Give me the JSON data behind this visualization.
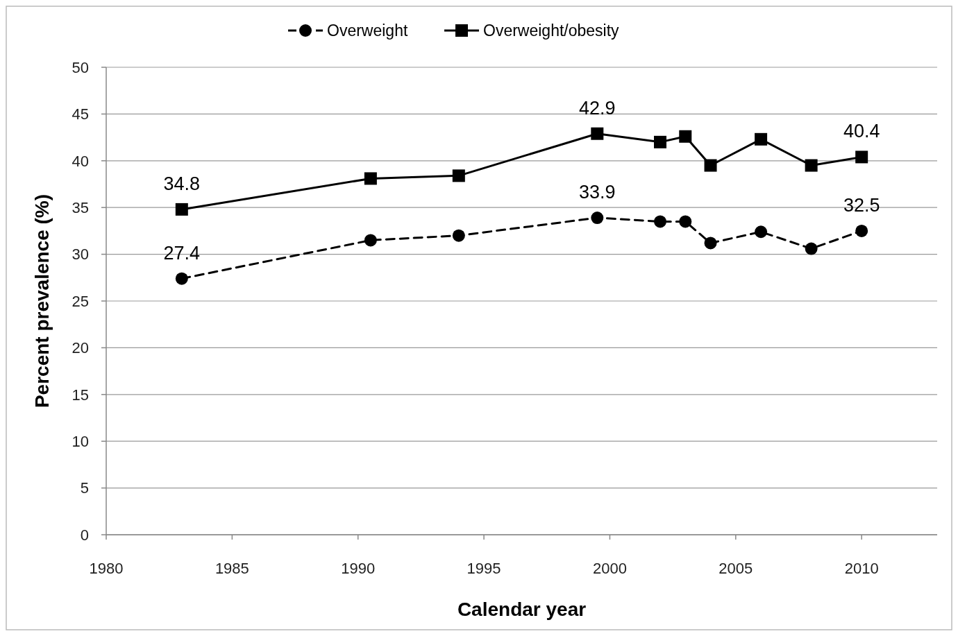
{
  "chart_data": {
    "type": "line",
    "xlabel": "Calendar year",
    "ylabel": "Percent prevalence (%)",
    "xlim": [
      1980,
      2013
    ],
    "xticks": [
      1980,
      1985,
      1990,
      1995,
      2000,
      2005,
      2010
    ],
    "ylim": [
      0,
      50
    ],
    "yticks": [
      0,
      5,
      10,
      15,
      20,
      25,
      30,
      35,
      40,
      45,
      50
    ],
    "x": [
      1983,
      1990.5,
      1994,
      1999.5,
      2002,
      2003,
      2004,
      2006,
      2008,
      2010
    ],
    "grid": "y",
    "legend": "top",
    "series": [
      {
        "name": "Overweight",
        "color": "#000000",
        "marker": "circle",
        "line_style": "dashed",
        "values": [
          27.4,
          31.5,
          32.0,
          33.9,
          33.5,
          33.5,
          31.2,
          32.4,
          30.6,
          32.5
        ],
        "value_labels": [
          "27.4",
          null,
          null,
          "33.9",
          null,
          null,
          null,
          null,
          null,
          "32.5"
        ]
      },
      {
        "name": "Overweight/obesity",
        "color": "#000000",
        "marker": "square",
        "line_style": "solid",
        "values": [
          34.8,
          38.1,
          38.4,
          42.9,
          42.0,
          42.6,
          39.5,
          42.3,
          39.5,
          40.4
        ],
        "value_labels": [
          "34.8",
          null,
          null,
          "42.9",
          null,
          null,
          null,
          null,
          null,
          "40.4"
        ]
      }
    ]
  }
}
